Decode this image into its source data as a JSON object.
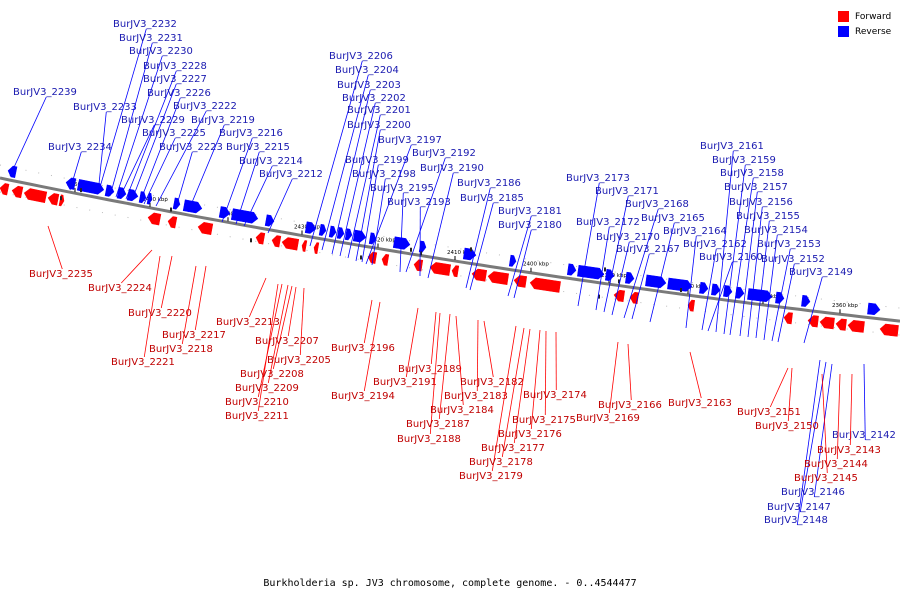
{
  "caption": "Burkholderia sp. JV3 chromosome, complete genome. - 0..4544477",
  "legend": {
    "forward": {
      "label": "Forward",
      "color": "#ff0000"
    },
    "reverse": {
      "label": "Reverse",
      "color": "#0000ff"
    }
  },
  "colors": {
    "backbone": "#7a7a7a",
    "forward_label": "#c00000",
    "reverse_label": "#1a1ab0"
  },
  "ticks": [
    "2360 kbp",
    "2370 kbp",
    "2380 kbp",
    "2390 kbp",
    "2400 kbp",
    "2410 kbp",
    "2420 kbp",
    "2430 kbp",
    "2440 kbp",
    "2450 kbp",
    "2460 kbp"
  ],
  "reverse_labels": [
    "BurJV3_2239",
    "BurJV3_2234",
    "BurJV3_2233",
    "BurJV3_2232",
    "BurJV3_2231",
    "BurJV3_2230",
    "BurJV3_2229",
    "BurJV3_2228",
    "BurJV3_2227",
    "BurJV3_2226",
    "BurJV3_2225",
    "BurJV3_2223",
    "BurJV3_2222",
    "BurJV3_2219",
    "BurJV3_2216",
    "BurJV3_2215",
    "BurJV3_2214",
    "BurJV3_2212",
    "BurJV3_2206",
    "BurJV3_2204",
    "BurJV3_2203",
    "BurJV3_2202",
    "BurJV3_2201",
    "BurJV3_2200",
    "BurJV3_2199",
    "BurJV3_2198",
    "BurJV3_2197",
    "BurJV3_2195",
    "BurJV3_2193",
    "BurJV3_2192",
    "BurJV3_2190",
    "BurJV3_2186",
    "BurJV3_2185",
    "BurJV3_2181",
    "BurJV3_2180",
    "BurJV3_2173",
    "BurJV3_2172",
    "BurJV3_2171",
    "BurJV3_2170",
    "BurJV3_2168",
    "BurJV3_2167",
    "BurJV3_2165",
    "BurJV3_2164",
    "BurJV3_2162",
    "BurJV3_2161",
    "BurJV3_2160",
    "BurJV3_2159",
    "BurJV3_2158",
    "BurJV3_2157",
    "BurJV3_2156",
    "BurJV3_2155",
    "BurJV3_2154",
    "BurJV3_2153",
    "BurJV3_2152",
    "BurJV3_2149",
    "BurJV3_2148",
    "BurJV3_2147",
    "BurJV3_2146",
    "BurJV3_2142"
  ],
  "forward_labels": [
    "BurJV3_2235",
    "BurJV3_2224",
    "BurJV3_2221",
    "BurJV3_2220",
    "BurJV3_2218",
    "BurJV3_2217",
    "BurJV3_2213",
    "BurJV3_2211",
    "BurJV3_2210",
    "BurJV3_2209",
    "BurJV3_2208",
    "BurJV3_2207",
    "BurJV3_2205",
    "BurJV3_2196",
    "BurJV3_2194",
    "BurJV3_2191",
    "BurJV3_2189",
    "BurJV3_2188",
    "BurJV3_2187",
    "BurJV3_2184",
    "BurJV3_2183",
    "BurJV3_2182",
    "BurJV3_2179",
    "BurJV3_2178",
    "BurJV3_2177",
    "BurJV3_2176",
    "BurJV3_2175",
    "BurJV3_2174",
    "BurJV3_2169",
    "BurJV3_2166",
    "BurJV3_2163",
    "BurJV3_2151",
    "BurJV3_2150",
    "BurJV3_2145",
    "BurJV3_2144",
    "BurJV3_2143"
  ]
}
